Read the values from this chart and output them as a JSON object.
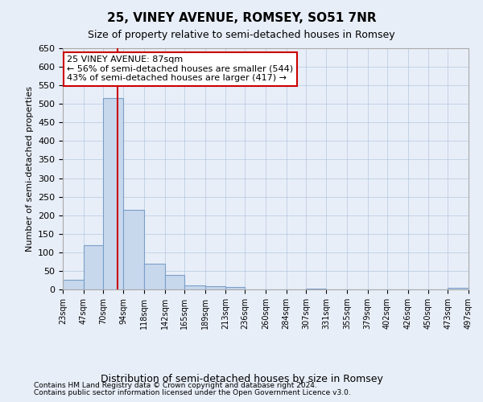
{
  "title": "25, VINEY AVENUE, ROMSEY, SO51 7NR",
  "subtitle": "Size of property relative to semi-detached houses in Romsey",
  "xlabel": "Distribution of semi-detached houses by size in Romsey",
  "ylabel": "Number of semi-detached properties",
  "footnote1": "Contains HM Land Registry data © Crown copyright and database right 2024.",
  "footnote2": "Contains public sector information licensed under the Open Government Licence v3.0.",
  "annotation_title": "25 VINEY AVENUE: 87sqm",
  "annotation_line1": "← 56% of semi-detached houses are smaller (544)",
  "annotation_line2": "43% of semi-detached houses are larger (417) →",
  "bar_color": "#c8d8ec",
  "bar_edge_color": "#7a9ec8",
  "vline_color": "#cc0000",
  "vline_x": 87,
  "annotation_box_color": "#ffffff",
  "annotation_box_edge": "#cc0000",
  "background_color": "#e8eef8",
  "ylim": [
    0,
    650
  ],
  "yticks": [
    0,
    50,
    100,
    150,
    200,
    250,
    300,
    350,
    400,
    450,
    500,
    550,
    600,
    650
  ],
  "bin_edges": [
    23,
    47,
    70,
    94,
    118,
    142,
    165,
    189,
    213,
    236,
    260,
    284,
    307,
    331,
    355,
    379,
    402,
    426,
    450,
    473,
    497
  ],
  "bin_labels": [
    "23sqm",
    "47sqm",
    "70sqm",
    "94sqm",
    "118sqm",
    "142sqm",
    "165sqm",
    "189sqm",
    "213sqm",
    "236sqm",
    "260sqm",
    "284sqm",
    "307sqm",
    "331sqm",
    "355sqm",
    "379sqm",
    "402sqm",
    "426sqm",
    "450sqm",
    "473sqm",
    "497sqm"
  ],
  "bar_heights": [
    25,
    120,
    515,
    215,
    70,
    40,
    10,
    8,
    7,
    0,
    0,
    0,
    2,
    0,
    0,
    0,
    0,
    0,
    0,
    5
  ]
}
